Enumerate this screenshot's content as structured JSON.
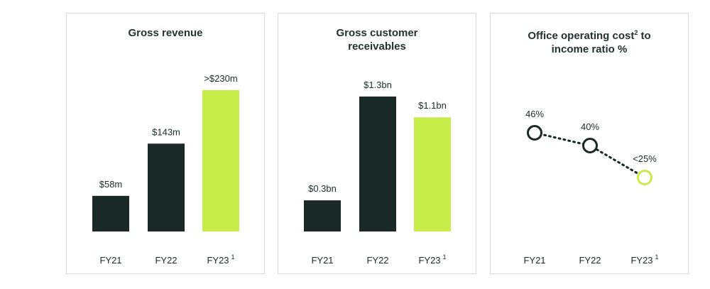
{
  "colors": {
    "dark": "#1a2826",
    "accent": "#c8ec4a",
    "border": "#d9d9d9"
  },
  "chart_data": [
    {
      "type": "bar",
      "title": "Gross revenue",
      "categories": [
        "FY21",
        "FY22",
        "FY23"
      ],
      "category_superscripts": [
        "",
        "",
        "1"
      ],
      "values": [
        58,
        143,
        230
      ],
      "value_labels": [
        "$58m",
        "$143m",
        ">$230m"
      ],
      "unit": "$m",
      "highlight_index": 2,
      "ylim": [
        0,
        245
      ]
    },
    {
      "type": "bar",
      "title": "Gross customer receivables",
      "categories": [
        "FY21",
        "FY22",
        "FY23"
      ],
      "category_superscripts": [
        "",
        "",
        "1"
      ],
      "values": [
        0.3,
        1.3,
        1.1
      ],
      "value_labels": [
        "$0.3bn",
        "$1.3bn",
        "$1.1bn"
      ],
      "unit": "$bn",
      "highlight_index": 2,
      "ylim": [
        0,
        1.45
      ]
    },
    {
      "type": "line",
      "title": "Office operating cost",
      "title_superscript": "2",
      "title_suffix": " to income ratio %",
      "categories": [
        "FY21",
        "FY22",
        "FY23"
      ],
      "category_superscripts": [
        "",
        "",
        "1"
      ],
      "values": [
        46,
        40,
        25
      ],
      "value_labels": [
        "46%",
        "40%",
        "<25%"
      ],
      "unit": "%",
      "highlight_index": 2,
      "ylim": [
        -8,
        62
      ]
    }
  ]
}
